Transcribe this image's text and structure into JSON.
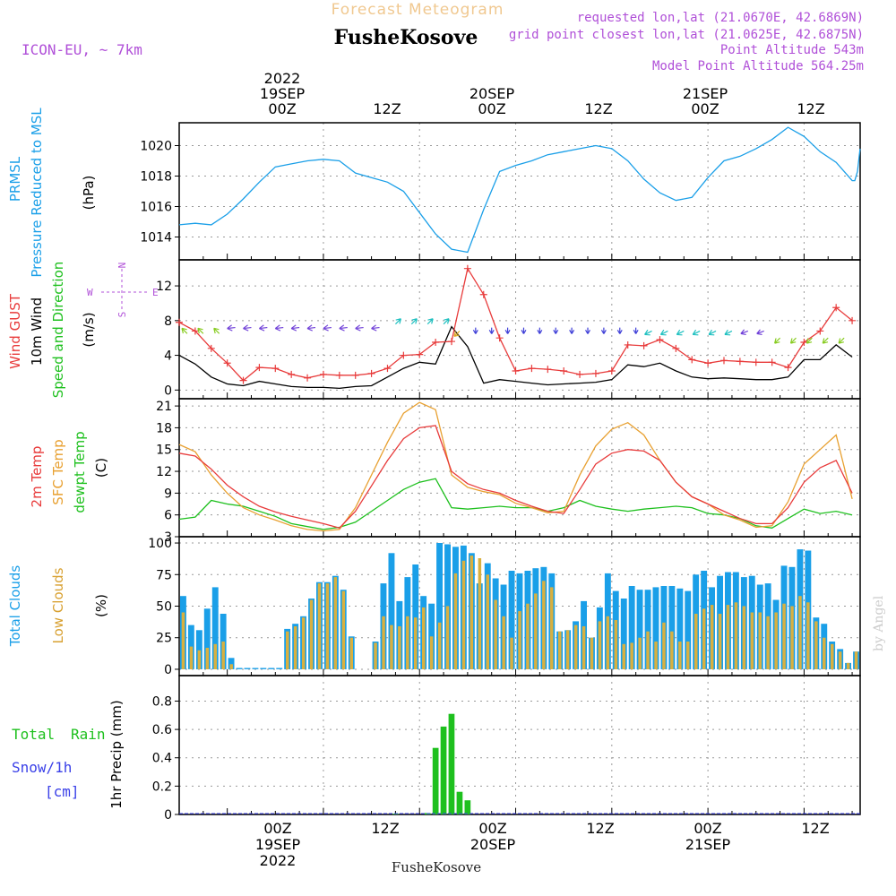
{
  "header": {
    "title": "Forecast Meteogram",
    "station": "FusheKosove",
    "model": "ICON-EU, ~ 7km",
    "requested": "requested lon,lat (21.0670E, 42.6869N)",
    "closest": "grid point closest lon,lat (21.0625E, 42.6875N)",
    "altitude": "Point Altitude 543m",
    "model_altitude": "Model Point Altitude 564.25m",
    "footer_station": "FusheKosove",
    "credit": "by Angel"
  },
  "time_axis": {
    "top_year": "2022",
    "top_days": [
      "19SEP",
      "20SEP",
      "21SEP"
    ],
    "hour_labels": [
      "00Z",
      "12Z",
      "00Z",
      "12Z",
      "00Z",
      "12Z"
    ],
    "bottom_days": [
      "19SEP",
      "20SEP",
      "21SEP"
    ],
    "bottom_year": "2022"
  },
  "colors": {
    "prmsl": "#1a9fe8",
    "gust": "#e83b3b",
    "wind": "#000000",
    "t2m": "#e83b3b",
    "sfc": "#e8a030",
    "dewpt": "#1ec01e",
    "total_clouds": "#1a9fe8",
    "low_clouds": "#d8b040",
    "rain": "#1ec01e",
    "snow": "#3a40e8",
    "meta": "#b050d8"
  },
  "panels": {
    "pressure": {
      "label1": "PRMSL",
      "label2": "Pressure Reduced to MSL",
      "unit": "(hPa)"
    },
    "wind": {
      "label1": "Wind GUST",
      "label2": "10m Wind",
      "label3": "Speed and Direction",
      "unit": "(m/s)",
      "compass_n": "N",
      "compass_s": "S",
      "compass_w": "W",
      "compass_e": "E"
    },
    "temp": {
      "label1": "2m Temp",
      "label2": "SFC Temp",
      "label3": "dewpt Temp",
      "unit": "(C)"
    },
    "clouds": {
      "label1": "Total Clouds",
      "label2": "Low Clouds",
      "unit": "(%)"
    },
    "precip": {
      "label1": "Total",
      "label1b": "Rain",
      "label2": "Snow/1h",
      "label3": "[cm]",
      "unit": "1hr Precip (mm)"
    }
  },
  "chart_data": [
    {
      "type": "line",
      "name": "pressure",
      "x_hours": [
        -18,
        -16,
        -14,
        -12,
        -10,
        -8,
        -6,
        -4,
        -2,
        0,
        2,
        4,
        6,
        8,
        10,
        12,
        14,
        16,
        18,
        20,
        22,
        24,
        26,
        28,
        30,
        32,
        34,
        36,
        38,
        40,
        42,
        44,
        46,
        48,
        50,
        52,
        54,
        56,
        58,
        60,
        62,
        64,
        66
      ],
      "series": [
        {
          "name": "PRMSL",
          "values": [
            1014.8,
            1014.9,
            1014.8,
            1015.5,
            1016.5,
            1017.6,
            1018.6,
            1018.8,
            1019.0,
            1019.1,
            1019.0,
            1018.2,
            1017.9,
            1017.6,
            1017.0,
            1015.6,
            1014.2,
            1013.2,
            1013.0,
            1015.8,
            1018.3,
            1018.7,
            1019.0,
            1019.4,
            1019.6,
            1019.8,
            1020.0,
            1019.8,
            1019.0,
            1017.8,
            1016.9,
            1016.4,
            1016.6,
            1017.9,
            1019.0,
            1019.3,
            1019.8,
            1020.4,
            1021.2,
            1020.6,
            1019.6,
            1018.9,
            1017.7
          ],
          "extend": [
            1017.7,
            1018.3,
            1019.8
          ]
        }
      ],
      "ylim": [
        1012.5,
        1021.5
      ],
      "yticks": [
        1014,
        1016,
        1018,
        1020
      ]
    },
    {
      "type": "line",
      "name": "wind",
      "x_hours": [
        -18,
        -16,
        -14,
        -12,
        -10,
        -8,
        -6,
        -4,
        -2,
        0,
        2,
        4,
        6,
        8,
        10,
        12,
        14,
        16,
        18,
        20,
        22,
        24,
        26,
        28,
        30,
        32,
        34,
        36,
        38,
        40,
        42,
        44,
        46,
        48,
        50,
        52,
        54,
        56,
        58,
        60,
        62,
        64,
        66
      ],
      "series": [
        {
          "name": "Wind GUST",
          "values": [
            7.8,
            6.8,
            4.8,
            3.1,
            1.1,
            2.6,
            2.5,
            1.8,
            1.4,
            1.8,
            1.7,
            1.7,
            1.9,
            2.5,
            4.0,
            4.1,
            5.5,
            5.6,
            14.0,
            11.0,
            6.0,
            2.2,
            2.5,
            2.4,
            2.2,
            1.8,
            1.9,
            2.2,
            5.2,
            5.1,
            5.8,
            4.8,
            3.5,
            3.1,
            3.4,
            3.3,
            3.2,
            3.2,
            2.6,
            5.5,
            6.8,
            9.5,
            8.0
          ]
        },
        {
          "name": "10m Wind",
          "values": [
            4.0,
            3.0,
            1.5,
            0.7,
            0.5,
            1.0,
            0.7,
            0.4,
            0.3,
            0.3,
            0.2,
            0.4,
            0.5,
            1.5,
            2.5,
            3.2,
            3.0,
            7.3,
            5.0,
            0.8,
            1.2,
            1.0,
            0.8,
            0.6,
            0.7,
            0.8,
            0.9,
            1.2,
            2.9,
            2.7,
            3.1,
            2.2,
            1.5,
            1.3,
            1.4,
            1.3,
            1.2,
            1.2,
            1.5,
            3.5,
            3.5,
            5.2,
            3.8
          ]
        }
      ],
      "ylim": [
        -1,
        15
      ],
      "yticks": [
        0,
        4,
        8,
        12
      ]
    },
    {
      "type": "line",
      "name": "temperature",
      "x_hours": [
        -18,
        -16,
        -14,
        -12,
        -10,
        -8,
        -6,
        -4,
        -2,
        0,
        2,
        4,
        6,
        8,
        10,
        12,
        14,
        16,
        18,
        20,
        22,
        24,
        26,
        28,
        30,
        32,
        34,
        36,
        38,
        40,
        42,
        44,
        46,
        48,
        50,
        52,
        54,
        56,
        58,
        60,
        62,
        64,
        66
      ],
      "series": [
        {
          "name": "2m Temp",
          "values": [
            14.5,
            14.1,
            12.3,
            10.1,
            8.5,
            7.2,
            6.4,
            5.8,
            5.3,
            4.8,
            4.2,
            6.5,
            10.0,
            13.5,
            16.5,
            18.0,
            18.3,
            12.0,
            10.3,
            9.5,
            9.0,
            8.0,
            7.2,
            6.5,
            6.2,
            9.5,
            13.0,
            14.5,
            15.0,
            14.8,
            13.5,
            10.5,
            8.5,
            7.5,
            6.5,
            5.5,
            4.8,
            4.8,
            7.0,
            10.5,
            12.5,
            13.5,
            9.0
          ]
        },
        {
          "name": "SFC Temp",
          "values": [
            15.7,
            14.7,
            11.5,
            9.0,
            7.0,
            6.0,
            5.3,
            4.5,
            4.0,
            3.8,
            4.0,
            7.0,
            11.5,
            16.0,
            20.0,
            21.5,
            20.5,
            11.5,
            9.8,
            9.2,
            8.8,
            7.6,
            7.0,
            6.3,
            6.5,
            11.5,
            15.5,
            17.8,
            18.7,
            17.0,
            13.5,
            10.5,
            8.5,
            7.5,
            6.0,
            5.3,
            4.3,
            4.5,
            7.8,
            13.0,
            15.0,
            17.0,
            8.2
          ]
        },
        {
          "name": "dewpt Temp",
          "values": [
            5.4,
            5.7,
            8.0,
            7.5,
            7.2,
            6.5,
            5.8,
            4.8,
            4.4,
            4.0,
            4.3,
            5.0,
            6.5,
            8.0,
            9.5,
            10.5,
            11.0,
            7.0,
            6.8,
            7.0,
            7.2,
            7.0,
            7.0,
            6.5,
            7.0,
            8.0,
            7.2,
            6.8,
            6.5,
            6.8,
            7.0,
            7.2,
            7.0,
            6.2,
            6.0,
            5.5,
            4.5,
            4.2,
            5.5,
            6.8,
            6.2,
            6.5,
            6.0
          ]
        }
      ],
      "ylim": [
        3,
        22
      ],
      "yticks": [
        3,
        6,
        9,
        12,
        15,
        18,
        21
      ]
    },
    {
      "type": "bar",
      "name": "clouds",
      "x_hours_start": -18,
      "series": [
        {
          "name": "Total Clouds",
          "values": [
            58,
            35,
            31,
            48,
            65,
            44,
            9,
            1,
            1,
            1,
            1,
            1,
            1,
            32,
            36,
            42,
            56,
            69,
            69,
            74,
            63,
            26,
            0,
            0,
            22,
            68,
            92,
            54,
            73,
            83,
            58,
            52,
            100,
            99,
            97,
            98,
            92,
            68,
            84,
            72,
            67,
            78,
            76,
            78,
            80,
            81,
            76,
            30,
            31,
            38,
            54,
            25,
            49,
            76,
            62,
            56,
            66,
            63,
            63,
            65,
            66,
            66,
            64,
            62,
            75,
            78,
            65,
            74,
            77,
            77,
            73,
            74,
            67,
            68,
            55,
            82,
            81,
            95,
            94,
            41,
            36,
            22,
            16,
            5,
            14
          ]
        },
        {
          "name": "Low Clouds",
          "values": [
            45,
            18,
            15,
            17,
            20,
            22,
            4,
            0,
            0,
            0,
            0,
            0,
            0,
            30,
            34,
            41,
            55,
            68,
            68,
            73,
            62,
            25,
            0,
            0,
            21,
            42,
            35,
            34,
            42,
            41,
            49,
            26,
            37,
            50,
            76,
            86,
            90,
            88,
            75,
            55,
            42,
            25,
            46,
            52,
            60,
            70,
            65,
            30,
            31,
            35,
            34,
            25,
            38,
            42,
            39,
            20,
            21,
            25,
            30,
            22,
            37,
            30,
            22,
            22,
            44,
            48,
            51,
            44,
            51,
            53,
            50,
            45,
            45,
            42,
            45,
            52,
            50,
            58,
            53,
            38,
            25,
            20,
            14,
            5,
            14
          ]
        }
      ],
      "ylim": [
        -5,
        105
      ],
      "yticks": [
        0,
        25,
        50,
        75,
        100
      ]
    },
    {
      "type": "bar",
      "name": "precipitation",
      "x_hours": [
        9,
        13,
        14,
        15,
        16,
        17,
        18
      ],
      "series": [
        {
          "name": "Total Rain",
          "values": [
            0.005,
            0.01,
            0.47,
            0.62,
            0.71,
            0.16,
            0.1
          ]
        }
      ],
      "ylim": [
        0,
        0.98
      ],
      "yticks": [
        0,
        0.2,
        0.4,
        0.6,
        0.8
      ]
    }
  ]
}
